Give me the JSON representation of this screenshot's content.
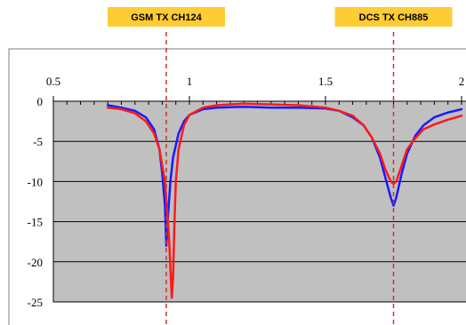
{
  "chart_data": {
    "type": "line",
    "title": "",
    "xlabel": "",
    "ylabel": "",
    "xlim": [
      0.5,
      2.0
    ],
    "ylim": [
      -25,
      0
    ],
    "x_ticks": [
      {
        "value": 0.5,
        "label": "0.5"
      },
      {
        "value": 1.0,
        "label": "1"
      },
      {
        "value": 1.5,
        "label": "1.5"
      },
      {
        "value": 2.0,
        "label": "2"
      }
    ],
    "y_ticks": [
      {
        "value": 0,
        "label": "0"
      },
      {
        "value": -5,
        "label": "-5"
      },
      {
        "value": -10,
        "label": "-10"
      },
      {
        "value": -15,
        "label": "-15"
      },
      {
        "value": -20,
        "label": "-20"
      },
      {
        "value": -25,
        "label": "-25"
      }
    ],
    "grid": true,
    "plot_background": "#c0c0c0",
    "annotations": [
      {
        "label": "GSM TX CH124",
        "x": 0.915,
        "color": "#ffcc33",
        "line_color": "#c0392b"
      },
      {
        "label": "DCS TX CH885",
        "x": 1.75,
        "color": "#ffcc33",
        "line_color": "#c0392b"
      }
    ],
    "series": [
      {
        "color": "#1a1aff",
        "x": [
          0.7,
          0.75,
          0.8,
          0.84,
          0.87,
          0.89,
          0.9,
          0.91,
          0.915,
          0.92,
          0.93,
          0.94,
          0.96,
          0.98,
          1.0,
          1.05,
          1.1,
          1.2,
          1.3,
          1.4,
          1.5,
          1.55,
          1.6,
          1.64,
          1.67,
          1.7,
          1.72,
          1.74,
          1.75,
          1.76,
          1.78,
          1.8,
          1.83,
          1.86,
          1.9,
          1.95,
          2.0
        ],
        "y": [
          -0.5,
          -0.8,
          -1.2,
          -2.0,
          -3.5,
          -6.0,
          -9.0,
          -13.0,
          -18.0,
          -15.0,
          -10.0,
          -7.0,
          -4.0,
          -2.5,
          -1.7,
          -1.0,
          -0.8,
          -0.7,
          -0.8,
          -0.8,
          -0.9,
          -1.2,
          -2.0,
          -3.0,
          -4.5,
          -7.0,
          -9.5,
          -12.0,
          -13.0,
          -12.0,
          -9.0,
          -6.5,
          -4.3,
          -3.0,
          -2.0,
          -1.4,
          -1.0
        ]
      },
      {
        "color": "#ff1a1a",
        "x": [
          0.7,
          0.75,
          0.8,
          0.84,
          0.87,
          0.89,
          0.91,
          0.925,
          0.935,
          0.94,
          0.945,
          0.95,
          0.96,
          0.98,
          1.0,
          1.05,
          1.1,
          1.2,
          1.3,
          1.4,
          1.5,
          1.55,
          1.6,
          1.64,
          1.67,
          1.7,
          1.72,
          1.74,
          1.75,
          1.76,
          1.78,
          1.8,
          1.83,
          1.86,
          1.9,
          1.95,
          2.0
        ],
        "y": [
          -0.8,
          -1.0,
          -1.5,
          -2.5,
          -4.0,
          -6.0,
          -10.0,
          -17.0,
          -24.5,
          -22.0,
          -15.0,
          -10.0,
          -6.0,
          -3.0,
          -1.7,
          -0.8,
          -0.5,
          -0.3,
          -0.4,
          -0.5,
          -0.8,
          -1.2,
          -1.8,
          -3.0,
          -4.5,
          -6.5,
          -8.5,
          -10.0,
          -10.3,
          -10.0,
          -8.0,
          -6.0,
          -4.6,
          -3.5,
          -2.9,
          -2.3,
          -1.8
        ]
      }
    ]
  }
}
